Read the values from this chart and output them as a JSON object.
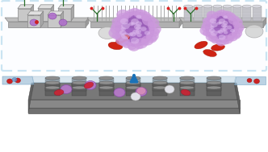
{
  "fig_width": 3.32,
  "fig_height": 1.89,
  "dpi": 100,
  "bg_color": "#ffffff",
  "chip": {
    "surface_color": "#7a7a7a",
    "surface_dark": "#5a5a5a",
    "base_color": "#888888",
    "base_dark": "#666666",
    "cover_color": "#c5dce8",
    "cover_alpha": 0.5,
    "inlet_color": "#a8c8dc",
    "inlet_alpha": 0.6,
    "pillar_body": "#5a5a5a",
    "pillar_top": "#8a8a8a"
  },
  "cells": {
    "purple": "#b070cc",
    "purple_edge": "#8040a0",
    "white": "#e8e8ee",
    "white_edge": "#aaaaaa",
    "red": "#cc2222",
    "red_edge": "#991111",
    "pink": "#e090b0"
  },
  "arrow_color": "#1a72b8",
  "bottom_border": "#3399cc",
  "bottom_bg": "#f8fcff",
  "flower": {
    "main": "#9955bb",
    "light": "#cc99dd",
    "lighter": "#ddbbee",
    "edge": "#7733aa"
  },
  "antibody_color": "#2a6e2a",
  "rbc_color": "#cc1100",
  "wbc_color": "#d8d8d8",
  "cube_face": "#c8c8c8",
  "cube_top": "#e0e0e0",
  "cube_side": "#a8a8a8",
  "wire_color": "#aaaaaa",
  "tube_face": "#c0c0c8",
  "tube_top": "#d8d8e0",
  "base_gray": "#b8b8b8",
  "base_side": "#999999"
}
